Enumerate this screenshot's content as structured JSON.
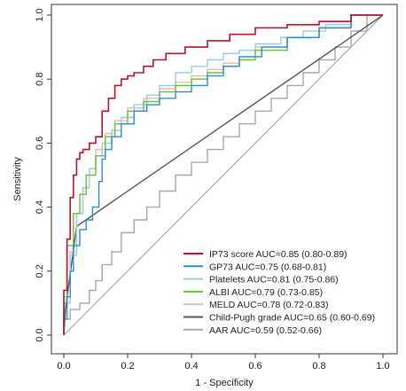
{
  "chart_data": {
    "type": "line",
    "xlabel": "1 - Specificity",
    "ylabel": "Sensitivity",
    "xlim": [
      0,
      1
    ],
    "ylim": [
      0,
      1
    ],
    "x_ticks": [
      "0.0",
      "0.2",
      "0.4",
      "0.6",
      "0.8",
      "1.0"
    ],
    "y_ticks": [
      "0.0",
      "0.2",
      "0.4",
      "0.6",
      "0.8",
      "1.0"
    ],
    "grid": false,
    "legend_position": "bottom-right",
    "reference_line": {
      "x": [
        0,
        1
      ],
      "y": [
        0,
        1
      ],
      "color": "#9e9e9e"
    },
    "series": [
      {
        "name": "IP73 score  AUC=0.85 (0.80-0.89)",
        "color": "#b2182b",
        "x": [
          0,
          0.01,
          0.02,
          0.03,
          0.04,
          0.05,
          0.06,
          0.08,
          0.1,
          0.12,
          0.14,
          0.16,
          0.18,
          0.2,
          0.22,
          0.25,
          0.28,
          0.32,
          0.38,
          0.45,
          0.52,
          0.6,
          0.7,
          0.8,
          0.9,
          1.0
        ],
        "y": [
          0,
          0.14,
          0.3,
          0.43,
          0.5,
          0.55,
          0.57,
          0.58,
          0.6,
          0.62,
          0.7,
          0.74,
          0.78,
          0.8,
          0.81,
          0.82,
          0.84,
          0.86,
          0.88,
          0.9,
          0.92,
          0.94,
          0.96,
          0.97,
          0.98,
          1.0
        ]
      },
      {
        "name": "GP73  AUC=0.75 (0.68-0.81)",
        "color": "#2b8cd6",
        "x": [
          0,
          0.01,
          0.02,
          0.03,
          0.05,
          0.07,
          0.09,
          0.11,
          0.12,
          0.13,
          0.15,
          0.18,
          0.22,
          0.26,
          0.3,
          0.35,
          0.4,
          0.45,
          0.5,
          0.55,
          0.62,
          0.7,
          0.8,
          0.9,
          1.0
        ],
        "y": [
          0,
          0.05,
          0.12,
          0.2,
          0.28,
          0.33,
          0.36,
          0.4,
          0.48,
          0.55,
          0.58,
          0.62,
          0.66,
          0.7,
          0.72,
          0.74,
          0.76,
          0.78,
          0.81,
          0.84,
          0.87,
          0.9,
          0.93,
          0.96,
          1.0
        ]
      },
      {
        "name": "Platelets AUC=0.81 (0.75-0.86)",
        "color": "#9ecae1",
        "x": [
          0,
          0.02,
          0.04,
          0.06,
          0.08,
          0.1,
          0.12,
          0.15,
          0.18,
          0.22,
          0.26,
          0.3,
          0.35,
          0.4,
          0.45,
          0.5,
          0.55,
          0.6,
          0.68,
          0.75,
          0.82,
          0.9,
          1.0
        ],
        "y": [
          0,
          0.1,
          0.25,
          0.38,
          0.46,
          0.52,
          0.56,
          0.6,
          0.64,
          0.68,
          0.72,
          0.75,
          0.78,
          0.82,
          0.84,
          0.86,
          0.88,
          0.89,
          0.91,
          0.93,
          0.95,
          0.97,
          1.0
        ]
      },
      {
        "name": "ALBI  AUC=0.79 (0.73-0.85)",
        "color": "#66c23a",
        "x": [
          0,
          0.01,
          0.03,
          0.05,
          0.07,
          0.1,
          0.13,
          0.16,
          0.2,
          0.25,
          0.3,
          0.35,
          0.4,
          0.45,
          0.5,
          0.55,
          0.6,
          0.7,
          0.8,
          0.9,
          1.0
        ],
        "y": [
          0,
          0.1,
          0.28,
          0.38,
          0.44,
          0.5,
          0.56,
          0.62,
          0.66,
          0.7,
          0.73,
          0.76,
          0.78,
          0.8,
          0.82,
          0.84,
          0.86,
          0.89,
          0.93,
          0.96,
          1.0
        ]
      },
      {
        "name": "MELD  AUC=0.78 (0.72-0.83)",
        "color": "#f4b6a4",
        "x": [
          0,
          0.02,
          0.04,
          0.06,
          0.08,
          0.1,
          0.13,
          0.16,
          0.2,
          0.25,
          0.3,
          0.35,
          0.4,
          0.45,
          0.5,
          0.55,
          0.6,
          0.7,
          0.8,
          0.9,
          1.0
        ],
        "y": [
          0,
          0.12,
          0.26,
          0.38,
          0.46,
          0.52,
          0.58,
          0.63,
          0.67,
          0.71,
          0.74,
          0.77,
          0.79,
          0.81,
          0.83,
          0.85,
          0.87,
          0.9,
          0.93,
          0.96,
          1.0
        ]
      },
      {
        "name": "Child-Pugh grade  AUC=0.65 (0.60-0.69)",
        "color": "#555555",
        "x": [
          0,
          0.005,
          0.04,
          1.0
        ],
        "y": [
          0,
          0.08,
          0.34,
          1.0
        ]
      },
      {
        "name": "AAR  AUC=0.59 (0.52-0.66)",
        "color": "#a8a8a8",
        "x": [
          0,
          0.02,
          0.05,
          0.08,
          0.1,
          0.12,
          0.15,
          0.18,
          0.22,
          0.26,
          0.3,
          0.35,
          0.4,
          0.45,
          0.5,
          0.55,
          0.6,
          0.65,
          0.7,
          0.75,
          0.8,
          0.85,
          0.9,
          0.95,
          1.0
        ],
        "y": [
          0,
          0.05,
          0.08,
          0.1,
          0.14,
          0.17,
          0.22,
          0.26,
          0.32,
          0.36,
          0.4,
          0.45,
          0.5,
          0.54,
          0.58,
          0.62,
          0.66,
          0.7,
          0.74,
          0.78,
          0.82,
          0.86,
          0.9,
          0.95,
          1.0
        ]
      }
    ]
  }
}
